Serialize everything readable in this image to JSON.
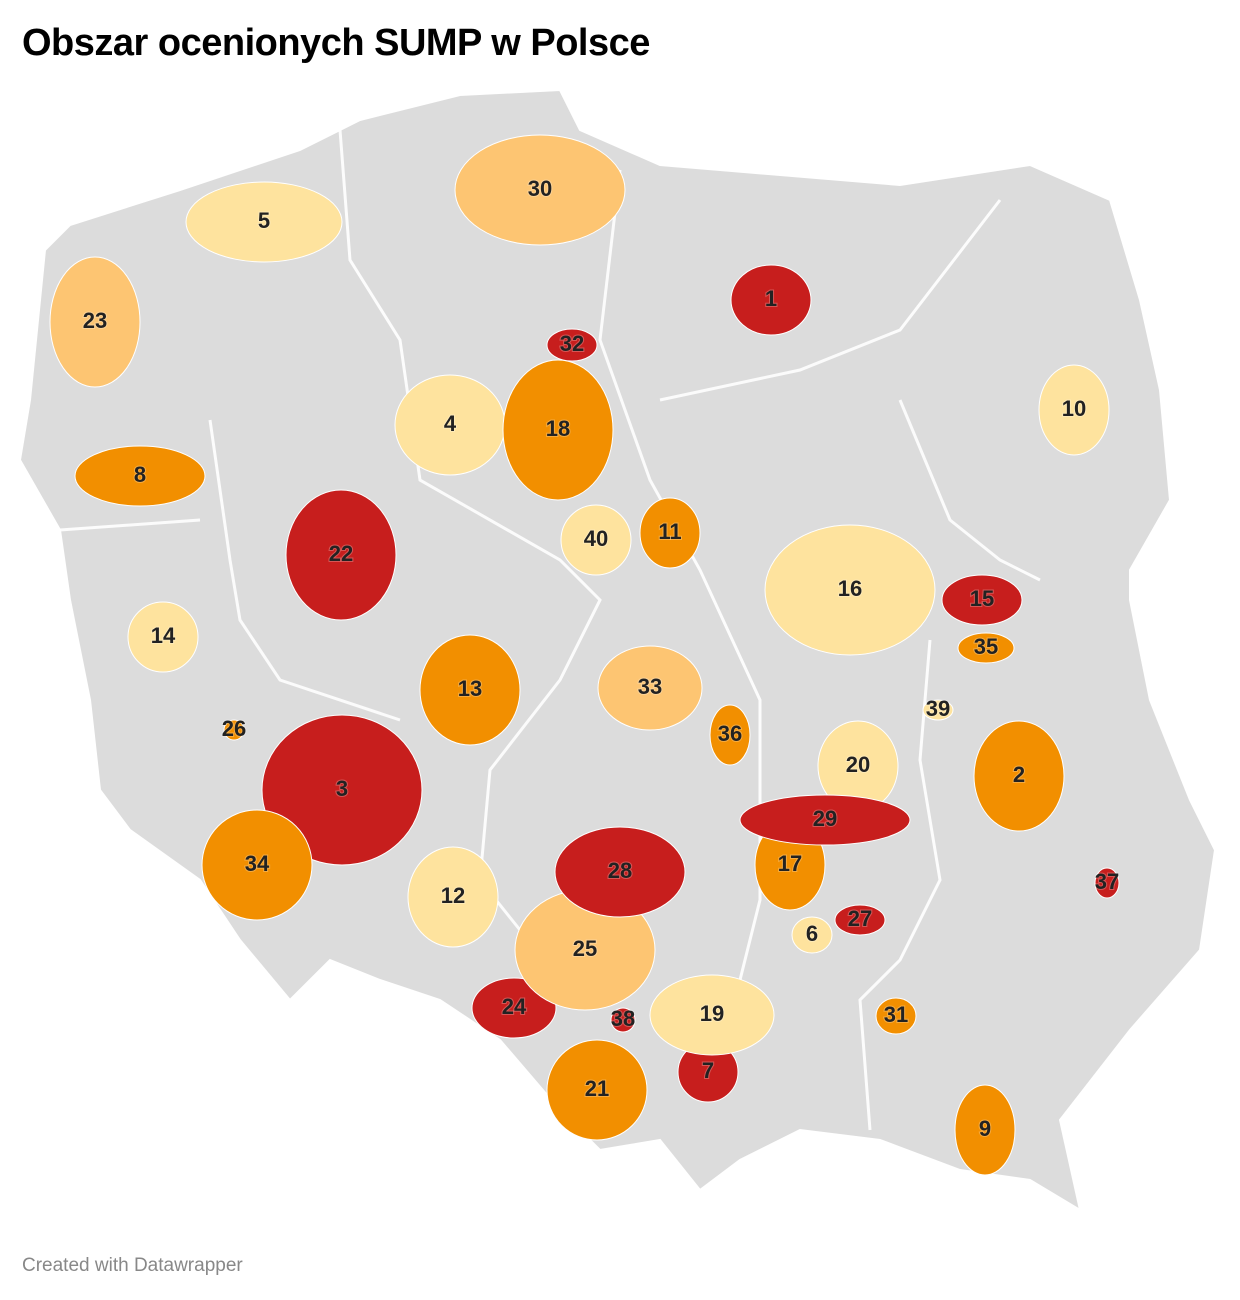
{
  "header": {
    "title": "Obszar ocenionych SUMP w Polsce"
  },
  "regions": [
    {
      "label": "1",
      "color": "#c71e1d"
    },
    {
      "label": "2",
      "color": "#f28f00"
    },
    {
      "label": "3",
      "color": "#c71e1d"
    },
    {
      "label": "4",
      "color": "#fee39e"
    },
    {
      "label": "5",
      "color": "#fee39e"
    },
    {
      "label": "6",
      "color": "#fee39e"
    },
    {
      "label": "7",
      "color": "#c71e1d"
    },
    {
      "label": "8",
      "color": "#f28f00"
    },
    {
      "label": "9",
      "color": "#f28f00"
    },
    {
      "label": "10",
      "color": "#fee39e"
    },
    {
      "label": "11",
      "color": "#f28f00"
    },
    {
      "label": "12",
      "color": "#fee39e"
    },
    {
      "label": "13",
      "color": "#f28f00"
    },
    {
      "label": "14",
      "color": "#fee39e"
    },
    {
      "label": "15",
      "color": "#c71e1d"
    },
    {
      "label": "16",
      "color": "#fee39e"
    },
    {
      "label": "17",
      "color": "#f28f00"
    },
    {
      "label": "18",
      "color": "#f28f00"
    },
    {
      "label": "19",
      "color": "#fee39e"
    },
    {
      "label": "20",
      "color": "#fee39e"
    },
    {
      "label": "21",
      "color": "#f28f00"
    },
    {
      "label": "22",
      "color": "#c71e1d"
    },
    {
      "label": "23",
      "color": "#fdc572"
    },
    {
      "label": "24",
      "color": "#c71e1d"
    },
    {
      "label": "25",
      "color": "#fdc572"
    },
    {
      "label": "26",
      "color": "#f28f00"
    },
    {
      "label": "27",
      "color": "#c71e1d"
    },
    {
      "label": "28",
      "color": "#c71e1d"
    },
    {
      "label": "29",
      "color": "#c71e1d"
    },
    {
      "label": "30",
      "color": "#fdc572"
    },
    {
      "label": "31",
      "color": "#f28f00"
    },
    {
      "label": "32",
      "color": "#c71e1d"
    },
    {
      "label": "33",
      "color": "#fdc572"
    },
    {
      "label": "34",
      "color": "#f28f00"
    },
    {
      "label": "35",
      "color": "#f28f00"
    },
    {
      "label": "36",
      "color": "#f28f00"
    },
    {
      "label": "37",
      "color": "#c71e1d"
    },
    {
      "label": "38",
      "color": "#c71e1d"
    },
    {
      "label": "39",
      "color": "#fee39e"
    },
    {
      "label": "40",
      "color": "#fee39e"
    }
  ],
  "footer": "Created with Datawrapper"
}
